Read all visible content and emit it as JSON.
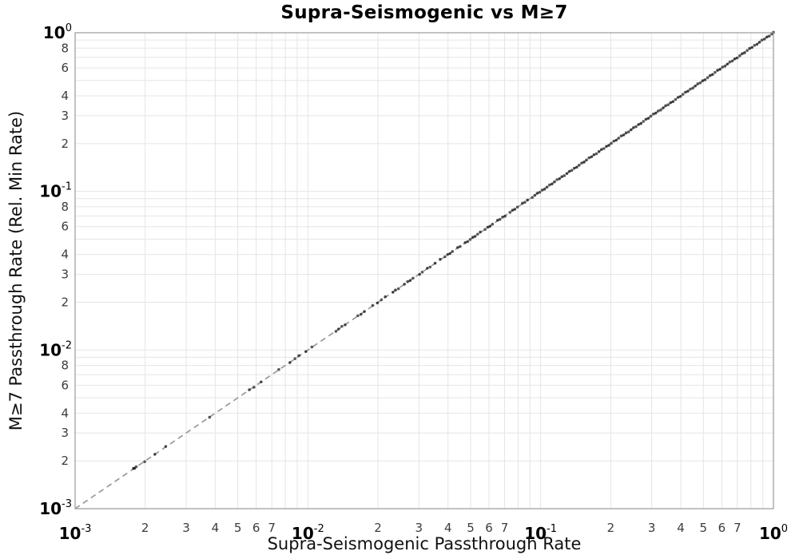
{
  "figure": {
    "title": "Supra-Seismogenic vs M≥7",
    "xlabel": "Supra-Seismogenic Passthrough Rate",
    "ylabel": "M≥7 Passthrough Rate (Rel. Min Rate)"
  },
  "chart_data": {
    "type": "scatter",
    "title": "Supra-Seismogenic vs M≥7",
    "xlabel": "Supra-Seismogenic Passthrough Rate",
    "ylabel": "M≥7 Passthrough Rate (Rel. Min Rate)",
    "xscale": "log",
    "yscale": "log",
    "xlim": [
      0.001,
      1.0
    ],
    "ylim": [
      0.001,
      1.0
    ],
    "grid": true,
    "legend": "none",
    "x_major_tick_exponents": [
      -3,
      -2,
      -1,
      0
    ],
    "x_major_tick_base": "10",
    "x_minor_tick_label_digits": [
      2,
      3,
      4,
      5,
      6,
      7
    ],
    "y_major_tick_exponents": [
      0,
      -1,
      -2,
      -3
    ],
    "y_major_tick_base": "10",
    "y_minor_tick_label_digits": [
      8,
      6,
      4,
      3,
      2
    ],
    "minor_grid_digits": [
      2,
      3,
      4,
      5,
      6,
      7,
      8,
      9
    ],
    "reference_line": {
      "relation": "y = x",
      "style": "dashed",
      "color": "#999999",
      "from": [
        0.001,
        0.001
      ],
      "to": [
        1.0,
        1.0
      ]
    },
    "marker": {
      "shape": "circle",
      "color": "#000000",
      "alpha": 0.65,
      "radius_px": 1.8
    },
    "points_relation": "y equals x for every point (all points lie on the identity line)",
    "points_x": [
      0.00178,
      0.0018,
      0.00183,
      0.00199,
      0.0022,
      0.00245,
      0.00378,
      0.0056,
      0.00587,
      0.0063,
      0.0075,
      0.00837,
      0.0088,
      0.00915,
      0.0098,
      0.0104,
      0.0132,
      0.01355,
      0.014,
      0.01445,
      0.0164,
      0.0169,
      0.0175,
      0.019,
      0.0199,
      0.0207,
      0.0215,
      0.0232,
      0.0238,
      0.0245,
      0.026,
      0.0268,
      0.0275,
      0.0283,
      0.0302,
      0.031,
      0.0326,
      0.0335,
      0.0352,
      0.037,
      0.0388,
      0.0398,
      0.0408,
      0.0418,
      0.044,
      0.0451,
      0.0474,
      0.0486,
      0.0498,
      0.0511,
      0.0523,
      0.0536,
      0.055,
      0.0577,
      0.0592,
      0.0606,
      0.0621,
      0.0653,
      0.0669,
      0.0686,
      0.0703,
      0.0738,
      0.0757,
      0.0775,
      0.0795,
      0.0835,
      0.0855,
      0.0877,
      0.0921,
      0.0943,
      0.0967,
      0.0991,
      0.1015,
      0.104,
      0.1066,
      0.1092,
      0.1119,
      0.1147,
      0.1175,
      0.1204,
      0.1234,
      0.1264,
      0.1296,
      0.1328,
      0.1361,
      0.1394,
      0.1429,
      0.1464,
      0.15,
      0.1537,
      0.1575,
      0.1614,
      0.1654,
      0.1695,
      0.1737,
      0.178,
      0.1824,
      0.1869,
      0.1915,
      0.1963,
      0.2011,
      0.2061,
      0.2112,
      0.2164,
      0.2218,
      0.2273,
      0.2329,
      0.2387,
      0.2446,
      0.2506,
      0.2568,
      0.2632,
      0.2697,
      0.2764,
      0.2832,
      0.2902,
      0.2974,
      0.3048,
      0.3123,
      0.32,
      0.3279,
      0.336,
      0.3444,
      0.3529,
      0.3616,
      0.3705,
      0.3797,
      0.3891,
      0.3987,
      0.4086,
      0.4187,
      0.429,
      0.4396,
      0.4505,
      0.4616,
      0.473,
      0.4847,
      0.4967,
      0.509,
      0.5216,
      0.5345,
      0.5477,
      0.5612,
      0.5751,
      0.5893,
      0.6039,
      0.6188,
      0.6341,
      0.6498,
      0.6658,
      0.6823,
      0.6991,
      0.7164,
      0.7341,
      0.7523,
      0.7709,
      0.7899,
      0.8094,
      0.8294,
      0.8499,
      0.8709,
      0.8925,
      0.9145,
      0.9371,
      0.9603,
      0.984,
      1.0
    ],
    "axis_colors": {
      "spine": "#999999",
      "grid": "#e5e5e5",
      "major_tick_label": "#000000",
      "minor_tick_label": "#3c3c3c"
    }
  }
}
